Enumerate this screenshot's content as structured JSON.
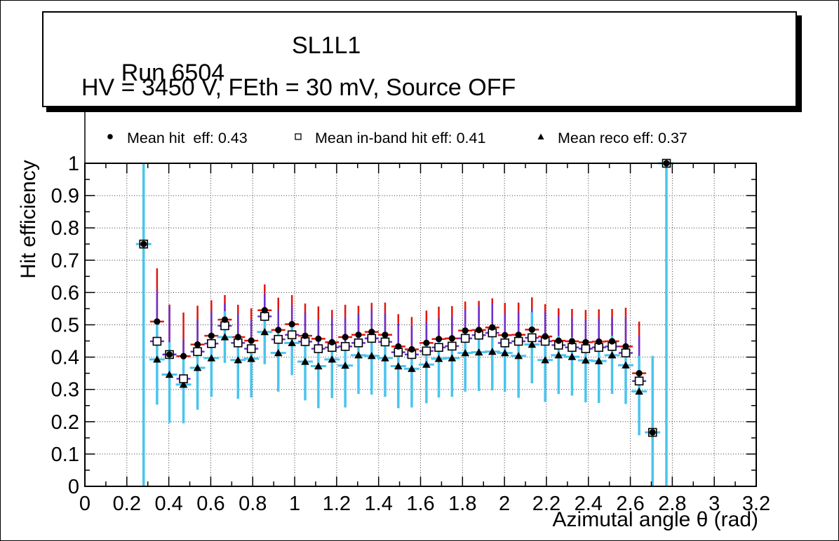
{
  "title_box": {
    "run_label": "Run 6504",
    "chamber_label": "SL1L1",
    "conditions": "HV = 3450 V, FEth = 30 mV, Source OFF"
  },
  "legend": {
    "items": [
      {
        "marker": "filled-circle",
        "label": "Mean hit  eff: 0.43"
      },
      {
        "marker": "open-square",
        "label": "Mean in-band hit eff: 0.41"
      },
      {
        "marker": "filled-triangle",
        "label": "Mean reco eff: 0.37"
      }
    ]
  },
  "chart_data": {
    "type": "scatter",
    "title": "",
    "xlabel": "Azimutal angle θ (rad)",
    "ylabel": "Hit efficiency",
    "xlim": [
      0,
      3.2
    ],
    "ylim": [
      0,
      1
    ],
    "grid": "dotted",
    "legend_position": "top",
    "x_tick_labels": [
      "0",
      "0.2",
      "0.4",
      "0.6",
      "0.8",
      "1",
      "1.2",
      "1.4",
      "1.6",
      "1.8",
      "2",
      "2.2",
      "2.4",
      "2.6",
      "2.8",
      "3",
      "3.2"
    ],
    "x_ticks": [
      0,
      0.2,
      0.4,
      0.6,
      0.8,
      1,
      1.2,
      1.4,
      1.6,
      1.8,
      2,
      2.2,
      2.4,
      2.6,
      2.8,
      3,
      3.2
    ],
    "y_tick_labels": [
      "0",
      "0.1",
      "0.2",
      "0.3",
      "0.4",
      "0.5",
      "0.6",
      "0.7",
      "0.8",
      "0.9",
      "1"
    ],
    "y_ticks": [
      0,
      0.1,
      0.2,
      0.3,
      0.4,
      0.5,
      0.6,
      0.7,
      0.8,
      0.9,
      1
    ],
    "x": [
      0.28,
      0.344,
      0.403,
      0.47,
      0.537,
      0.603,
      0.667,
      0.73,
      0.793,
      0.857,
      0.922,
      0.987,
      1.05,
      1.113,
      1.178,
      1.241,
      1.304,
      1.367,
      1.431,
      1.494,
      1.558,
      1.628,
      1.687,
      1.75,
      1.813,
      1.878,
      1.942,
      2.002,
      2.067,
      2.131,
      2.194,
      2.258,
      2.322,
      2.387,
      2.45,
      2.513,
      2.578,
      2.642,
      2.706,
      2.772
    ],
    "series": [
      {
        "name": "Mean hit  eff: 0.43",
        "mean": 0.43,
        "marker": "filled-circle",
        "marker_color": "#000000",
        "error_color": "#e3150f",
        "y": [
          0.75,
          0.51,
          0.408,
          0.403,
          0.439,
          0.466,
          0.516,
          0.462,
          0.451,
          0.545,
          0.484,
          0.502,
          0.466,
          0.457,
          0.446,
          0.462,
          0.469,
          0.478,
          0.469,
          0.433,
          0.424,
          0.444,
          0.456,
          0.458,
          0.482,
          0.484,
          0.492,
          0.468,
          0.469,
          0.485,
          0.464,
          0.451,
          0.449,
          0.446,
          0.448,
          0.449,
          0.433,
          0.35,
          0.167,
          1.0
        ],
        "err_up": [
          0.02,
          0.165,
          0.155,
          0.135,
          0.12,
          0.11,
          0.076,
          0.1,
          0.1,
          0.08,
          0.1,
          0.09,
          0.1,
          0.1,
          0.1,
          0.1,
          0.09,
          0.09,
          0.1,
          0.1,
          0.1,
          0.1,
          0.1,
          0.1,
          0.09,
          0.09,
          0.09,
          0.1,
          0.1,
          0.1,
          0.1,
          0.1,
          0.1,
          0.1,
          0.1,
          0.1,
          0.12,
          0.16,
          0.02,
          0.01
        ],
        "err_down": [
          0.02,
          0.05,
          0.04,
          0.04,
          0.04,
          0.04,
          0.04,
          0.04,
          0.04,
          0.04,
          0.04,
          0.04,
          0.04,
          0.04,
          0.04,
          0.04,
          0.04,
          0.04,
          0.04,
          0.04,
          0.04,
          0.04,
          0.04,
          0.04,
          0.04,
          0.04,
          0.04,
          0.04,
          0.04,
          0.04,
          0.04,
          0.04,
          0.04,
          0.04,
          0.04,
          0.04,
          0.05,
          0.05,
          0.02,
          0.01
        ]
      },
      {
        "name": "Mean in-band hit eff: 0.41",
        "mean": 0.41,
        "marker": "open-square",
        "marker_color": "#000000",
        "error_color": "#6a2fd0",
        "y": [
          0.75,
          0.449,
          0.408,
          0.333,
          0.417,
          0.442,
          0.497,
          0.444,
          0.426,
          0.526,
          0.455,
          0.469,
          0.448,
          0.426,
          0.43,
          0.433,
          0.444,
          0.458,
          0.447,
          0.415,
          0.408,
          0.419,
          0.43,
          0.434,
          0.458,
          0.468,
          0.475,
          0.444,
          0.449,
          0.46,
          0.449,
          0.437,
          0.43,
          0.426,
          0.43,
          0.433,
          0.413,
          0.326,
          0.167,
          1.0
        ],
        "err_up": [
          0.02,
          0.158,
          0.15,
          0.12,
          0.1,
          0.1,
          0.07,
          0.09,
          0.09,
          0.07,
          0.09,
          0.09,
          0.09,
          0.09,
          0.09,
          0.09,
          0.09,
          0.09,
          0.09,
          0.09,
          0.09,
          0.09,
          0.09,
          0.09,
          0.09,
          0.09,
          0.09,
          0.09,
          0.09,
          0.09,
          0.09,
          0.09,
          0.09,
          0.09,
          0.09,
          0.09,
          0.11,
          0.14,
          0.02,
          0.01
        ],
        "err_down": [
          0.02,
          0.05,
          0.05,
          0.05,
          0.05,
          0.05,
          0.05,
          0.05,
          0.05,
          0.05,
          0.05,
          0.05,
          0.05,
          0.05,
          0.05,
          0.05,
          0.05,
          0.05,
          0.05,
          0.05,
          0.05,
          0.05,
          0.05,
          0.05,
          0.05,
          0.05,
          0.05,
          0.05,
          0.05,
          0.05,
          0.05,
          0.05,
          0.05,
          0.05,
          0.05,
          0.05,
          0.05,
          0.06,
          0.02,
          0.01
        ]
      },
      {
        "name": "Mean reco eff: 0.37",
        "mean": 0.37,
        "marker": "filled-triangle",
        "marker_color": "#000000",
        "error_color": "#49c4ef",
        "y": [
          0.75,
          0.393,
          0.346,
          0.315,
          0.367,
          0.397,
          0.462,
          0.391,
          0.395,
          0.478,
          0.413,
          0.444,
          0.386,
          0.372,
          0.393,
          0.374,
          0.406,
          0.404,
          0.397,
          0.372,
          0.364,
          0.377,
          0.395,
          0.397,
          0.413,
          0.415,
          0.417,
          0.413,
          0.404,
          0.439,
          0.391,
          0.406,
          0.401,
          0.39,
          0.388,
          0.406,
          0.375,
          0.294,
          0.167,
          1.0
        ],
        "err_up": [
          0.25,
          0.12,
          0.1,
          0.09,
          0.07,
          0.07,
          0.08,
          0.06,
          0.06,
          0.06,
          0.06,
          0.06,
          0.06,
          0.06,
          0.06,
          0.06,
          0.06,
          0.06,
          0.06,
          0.06,
          0.06,
          0.06,
          0.06,
          0.06,
          0.06,
          0.06,
          0.06,
          0.06,
          0.06,
          0.1,
          0.06,
          0.06,
          0.06,
          0.06,
          0.06,
          0.06,
          0.06,
          0.11,
          0.237,
          0.0
        ],
        "err_down": [
          0.75,
          0.14,
          0.15,
          0.12,
          0.13,
          0.12,
          0.08,
          0.12,
          0.12,
          0.1,
          0.12,
          0.1,
          0.12,
          0.13,
          0.12,
          0.13,
          0.12,
          0.12,
          0.12,
          0.13,
          0.12,
          0.12,
          0.12,
          0.12,
          0.12,
          0.12,
          0.12,
          0.12,
          0.13,
          0.12,
          0.13,
          0.12,
          0.12,
          0.13,
          0.13,
          0.12,
          0.12,
          0.136,
          0.167,
          1.0
        ]
      }
    ]
  }
}
